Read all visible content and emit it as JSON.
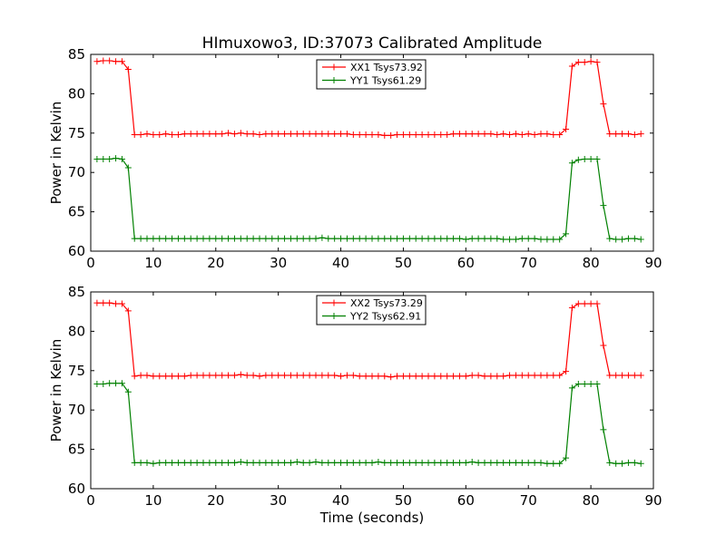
{
  "chart_data": [
    {
      "type": "line",
      "title": "HImuxowo3, ID:37073 Calibrated Amplitude",
      "xlabel": "",
      "ylabel": "Power in Kelvin",
      "xlim": [
        0,
        90
      ],
      "ylim": [
        60,
        85
      ],
      "xticks": [
        "0",
        "10",
        "20",
        "30",
        "40",
        "50",
        "60",
        "70",
        "80",
        "90"
      ],
      "yticks": [
        "60",
        "65",
        "70",
        "75",
        "80",
        "85"
      ],
      "grid": false,
      "legend": "top-center",
      "x": [
        1,
        2,
        3,
        4,
        5,
        6,
        7,
        8,
        9,
        10,
        11,
        12,
        13,
        14,
        15,
        16,
        17,
        18,
        19,
        20,
        21,
        22,
        23,
        24,
        25,
        26,
        27,
        28,
        29,
        30,
        31,
        32,
        33,
        34,
        35,
        36,
        37,
        38,
        39,
        40,
        41,
        42,
        43,
        44,
        45,
        46,
        47,
        48,
        49,
        50,
        51,
        52,
        53,
        54,
        55,
        56,
        57,
        58,
        59,
        60,
        61,
        62,
        63,
        64,
        65,
        66,
        67,
        68,
        69,
        70,
        71,
        72,
        73,
        74,
        75,
        76,
        77,
        78,
        79,
        80,
        81,
        82,
        83,
        84,
        85,
        86,
        87,
        88
      ],
      "series": [
        {
          "name": "XX1 Tsys73.92",
          "color": "#ff0000",
          "values": [
            84.1,
            84.2,
            84.2,
            84.1,
            84.1,
            83.1,
            74.8,
            74.8,
            74.9,
            74.8,
            74.8,
            74.9,
            74.8,
            74.8,
            74.9,
            74.9,
            74.9,
            74.9,
            74.9,
            74.9,
            74.9,
            75.0,
            74.9,
            75.0,
            74.9,
            74.9,
            74.8,
            74.9,
            74.9,
            74.9,
            74.9,
            74.9,
            74.9,
            74.9,
            74.9,
            74.9,
            74.9,
            74.9,
            74.9,
            74.9,
            74.9,
            74.8,
            74.8,
            74.8,
            74.8,
            74.8,
            74.7,
            74.7,
            74.8,
            74.8,
            74.8,
            74.8,
            74.8,
            74.8,
            74.8,
            74.8,
            74.8,
            74.9,
            74.9,
            74.9,
            74.9,
            74.9,
            74.9,
            74.9,
            74.8,
            74.9,
            74.8,
            74.9,
            74.8,
            74.9,
            74.8,
            74.9,
            74.9,
            74.8,
            74.8,
            75.5,
            83.5,
            84.0,
            84.0,
            84.1,
            84.0,
            78.7,
            74.9,
            74.9,
            74.9,
            74.9,
            74.8,
            74.9
          ]
        },
        {
          "name": "YY1 Tsys61.29",
          "color": "#008000",
          "values": [
            71.7,
            71.7,
            71.7,
            71.8,
            71.7,
            70.6,
            61.6,
            61.6,
            61.6,
            61.6,
            61.6,
            61.6,
            61.6,
            61.6,
            61.6,
            61.6,
            61.6,
            61.6,
            61.6,
            61.6,
            61.6,
            61.6,
            61.6,
            61.6,
            61.6,
            61.6,
            61.6,
            61.6,
            61.6,
            61.6,
            61.6,
            61.6,
            61.6,
            61.6,
            61.6,
            61.6,
            61.7,
            61.6,
            61.6,
            61.6,
            61.6,
            61.6,
            61.6,
            61.6,
            61.6,
            61.6,
            61.6,
            61.6,
            61.6,
            61.6,
            61.6,
            61.6,
            61.6,
            61.6,
            61.6,
            61.6,
            61.6,
            61.6,
            61.6,
            61.5,
            61.6,
            61.6,
            61.6,
            61.6,
            61.6,
            61.5,
            61.5,
            61.5,
            61.6,
            61.6,
            61.6,
            61.5,
            61.5,
            61.5,
            61.5,
            62.2,
            71.2,
            71.6,
            71.7,
            71.7,
            71.7,
            65.8,
            61.6,
            61.5,
            61.5,
            61.6,
            61.6,
            61.5
          ]
        }
      ]
    },
    {
      "type": "line",
      "title": "",
      "xlabel": "Time (seconds)",
      "ylabel": "Power in Kelvin",
      "xlim": [
        0,
        90
      ],
      "ylim": [
        60,
        85
      ],
      "xticks": [
        "0",
        "10",
        "20",
        "30",
        "40",
        "50",
        "60",
        "70",
        "80",
        "90"
      ],
      "yticks": [
        "60",
        "65",
        "70",
        "75",
        "80",
        "85"
      ],
      "grid": false,
      "legend": "top-center",
      "x": [
        1,
        2,
        3,
        4,
        5,
        6,
        7,
        8,
        9,
        10,
        11,
        12,
        13,
        14,
        15,
        16,
        17,
        18,
        19,
        20,
        21,
        22,
        23,
        24,
        25,
        26,
        27,
        28,
        29,
        30,
        31,
        32,
        33,
        34,
        35,
        36,
        37,
        38,
        39,
        40,
        41,
        42,
        43,
        44,
        45,
        46,
        47,
        48,
        49,
        50,
        51,
        52,
        53,
        54,
        55,
        56,
        57,
        58,
        59,
        60,
        61,
        62,
        63,
        64,
        65,
        66,
        67,
        68,
        69,
        70,
        71,
        72,
        73,
        74,
        75,
        76,
        77,
        78,
        79,
        80,
        81,
        82,
        83,
        84,
        85,
        86,
        87,
        88
      ],
      "series": [
        {
          "name": "XX2 Tsys73.29",
          "color": "#ff0000",
          "values": [
            83.6,
            83.6,
            83.6,
            83.5,
            83.5,
            82.6,
            74.3,
            74.4,
            74.4,
            74.3,
            74.3,
            74.3,
            74.3,
            74.3,
            74.3,
            74.4,
            74.4,
            74.4,
            74.4,
            74.4,
            74.4,
            74.4,
            74.4,
            74.5,
            74.4,
            74.4,
            74.3,
            74.4,
            74.4,
            74.4,
            74.4,
            74.4,
            74.4,
            74.4,
            74.4,
            74.4,
            74.4,
            74.4,
            74.4,
            74.3,
            74.4,
            74.4,
            74.3,
            74.3,
            74.3,
            74.3,
            74.3,
            74.2,
            74.3,
            74.3,
            74.3,
            74.3,
            74.3,
            74.3,
            74.3,
            74.3,
            74.3,
            74.3,
            74.3,
            74.3,
            74.4,
            74.4,
            74.3,
            74.3,
            74.3,
            74.3,
            74.4,
            74.4,
            74.4,
            74.4,
            74.4,
            74.4,
            74.4,
            74.4,
            74.4,
            74.9,
            83.0,
            83.5,
            83.5,
            83.5,
            83.5,
            78.2,
            74.4,
            74.4,
            74.4,
            74.4,
            74.4,
            74.4
          ]
        },
        {
          "name": "YY2 Tsys62.91",
          "color": "#008000",
          "values": [
            73.3,
            73.3,
            73.4,
            73.4,
            73.4,
            72.3,
            63.3,
            63.3,
            63.3,
            63.2,
            63.3,
            63.3,
            63.3,
            63.3,
            63.3,
            63.3,
            63.3,
            63.3,
            63.3,
            63.3,
            63.3,
            63.3,
            63.3,
            63.4,
            63.3,
            63.3,
            63.3,
            63.3,
            63.3,
            63.3,
            63.3,
            63.3,
            63.4,
            63.3,
            63.3,
            63.4,
            63.3,
            63.3,
            63.3,
            63.3,
            63.3,
            63.3,
            63.3,
            63.3,
            63.3,
            63.4,
            63.3,
            63.3,
            63.3,
            63.3,
            63.3,
            63.3,
            63.3,
            63.3,
            63.3,
            63.3,
            63.3,
            63.3,
            63.3,
            63.3,
            63.4,
            63.3,
            63.3,
            63.3,
            63.3,
            63.3,
            63.3,
            63.3,
            63.3,
            63.3,
            63.3,
            63.3,
            63.2,
            63.2,
            63.2,
            63.9,
            72.8,
            73.3,
            73.3,
            73.3,
            73.3,
            67.5,
            63.3,
            63.2,
            63.2,
            63.3,
            63.3,
            63.2
          ]
        }
      ]
    }
  ]
}
